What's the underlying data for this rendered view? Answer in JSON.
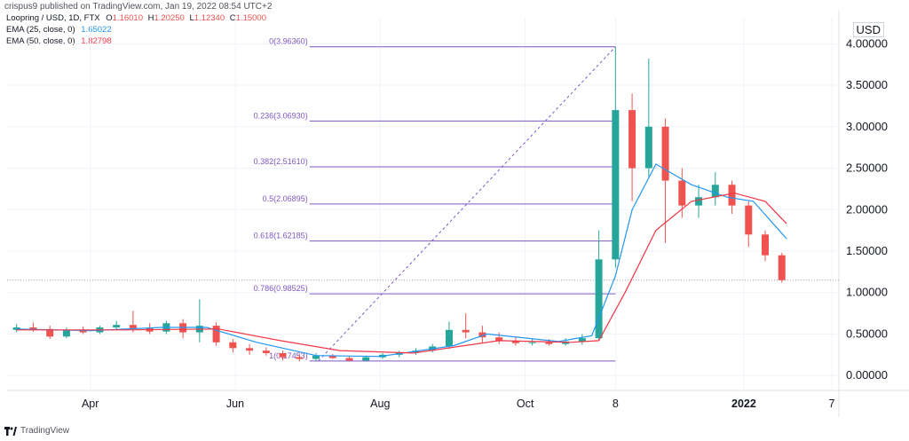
{
  "header": {
    "published_line": "crispus9 published on TradingView.com, Jan 19, 2022 08:54 UTC+2"
  },
  "legend": {
    "symbol_line": "Loopring / USD, 1D, FTX",
    "ohlc": [
      {
        "k": "O",
        "v": "1.16010"
      },
      {
        "k": "H",
        "v": "1.20250"
      },
      {
        "k": "L",
        "v": "1.12340"
      },
      {
        "k": "C",
        "v": "1.15000"
      }
    ],
    "ema25_label": "EMA (25, close, 0)",
    "ema25_value": "1.65022",
    "ema50_label": "EMA (50, close, 0)",
    "ema50_value": "1.82798"
  },
  "currency_label": "USD",
  "footer": {
    "brand": "TradingView"
  },
  "colors": {
    "up": "#26a69a",
    "down": "#ef5350",
    "ema25": "#2196f3",
    "ema50": "#f23645",
    "fib": "#7e57c2",
    "grid": "#f0f3fa",
    "axis_text": "#131722"
  },
  "chart_data": {
    "type": "candlestick",
    "title": "",
    "xlabel": "",
    "ylabel": "",
    "ylim": [
      -0.18,
      4.1
    ],
    "y_ticks": [
      "0.00000",
      "0.50000",
      "1.00000",
      "1.50000",
      "2.00000",
      "2.50000",
      "3.00000",
      "3.50000",
      "4.00000"
    ],
    "y_tick_values": [
      0,
      0.5,
      1,
      1.5,
      2,
      2.5,
      3,
      3.5,
      4
    ],
    "x_range": [
      "2021-02-25",
      "2022-02-10"
    ],
    "x_ticks": [
      {
        "label": "Apr",
        "date": "2021-04-01"
      },
      {
        "label": "Jun",
        "date": "2021-06-01"
      },
      {
        "label": "Aug",
        "date": "2021-08-01"
      },
      {
        "label": "Oct",
        "date": "2021-10-01"
      },
      {
        "label": "8",
        "date": "2021-11-08"
      },
      {
        "label": "2022",
        "date": "2022-01-01"
      },
      {
        "label": "7",
        "date": "2022-02-07"
      }
    ],
    "last_price": 1.15,
    "fibonacci": {
      "start": {
        "date": "2021-07-06",
        "price": 0.17453
      },
      "end": {
        "date": "2021-11-08",
        "price": 3.9636
      },
      "levels": [
        {
          "label": "0(3.96360)",
          "price": 3.9636
        },
        {
          "label": "0.236(3.06930)",
          "price": 3.0693
        },
        {
          "label": "0.382(2.51610)",
          "price": 2.5161
        },
        {
          "label": "0.5(2.06895)",
          "price": 2.06895
        },
        {
          "label": "0.618(1.62185)",
          "price": 1.62185
        },
        {
          "label": "0.786(0.98525)",
          "price": 0.98525
        },
        {
          "label": "1(0.17453)",
          "price": 0.17453
        }
      ]
    },
    "series": [
      {
        "name": "Loopring / USD",
        "kind": "candles",
        "points": [
          {
            "date": "2021-03-01",
            "o": 0.55,
            "h": 0.62,
            "l": 0.52,
            "c": 0.58
          },
          {
            "date": "2021-03-08",
            "o": 0.58,
            "h": 0.64,
            "l": 0.53,
            "c": 0.56
          },
          {
            "date": "2021-03-15",
            "o": 0.56,
            "h": 0.6,
            "l": 0.44,
            "c": 0.47
          },
          {
            "date": "2021-03-22",
            "o": 0.47,
            "h": 0.58,
            "l": 0.45,
            "c": 0.55
          },
          {
            "date": "2021-03-29",
            "o": 0.55,
            "h": 0.59,
            "l": 0.5,
            "c": 0.52
          },
          {
            "date": "2021-04-05",
            "o": 0.52,
            "h": 0.6,
            "l": 0.5,
            "c": 0.58
          },
          {
            "date": "2021-04-12",
            "o": 0.58,
            "h": 0.66,
            "l": 0.55,
            "c": 0.61
          },
          {
            "date": "2021-04-19",
            "o": 0.61,
            "h": 0.78,
            "l": 0.52,
            "c": 0.57
          },
          {
            "date": "2021-04-26",
            "o": 0.57,
            "h": 0.63,
            "l": 0.5,
            "c": 0.53
          },
          {
            "date": "2021-05-03",
            "o": 0.53,
            "h": 0.66,
            "l": 0.5,
            "c": 0.63
          },
          {
            "date": "2021-05-10",
            "o": 0.63,
            "h": 0.68,
            "l": 0.45,
            "c": 0.52
          },
          {
            "date": "2021-05-17",
            "o": 0.52,
            "h": 0.92,
            "l": 0.4,
            "c": 0.6
          },
          {
            "date": "2021-05-24",
            "o": 0.6,
            "h": 0.64,
            "l": 0.36,
            "c": 0.4
          },
          {
            "date": "2021-05-31",
            "o": 0.4,
            "h": 0.44,
            "l": 0.28,
            "c": 0.33
          },
          {
            "date": "2021-06-07",
            "o": 0.33,
            "h": 0.38,
            "l": 0.25,
            "c": 0.3
          },
          {
            "date": "2021-06-14",
            "o": 0.3,
            "h": 0.34,
            "l": 0.24,
            "c": 0.27
          },
          {
            "date": "2021-06-21",
            "o": 0.27,
            "h": 0.3,
            "l": 0.18,
            "c": 0.22
          },
          {
            "date": "2021-06-28",
            "o": 0.22,
            "h": 0.26,
            "l": 0.17,
            "c": 0.2
          },
          {
            "date": "2021-07-05",
            "o": 0.2,
            "h": 0.27,
            "l": 0.17,
            "c": 0.24
          },
          {
            "date": "2021-07-12",
            "o": 0.24,
            "h": 0.26,
            "l": 0.2,
            "c": 0.21
          },
          {
            "date": "2021-07-19",
            "o": 0.21,
            "h": 0.23,
            "l": 0.17,
            "c": 0.18
          },
          {
            "date": "2021-07-26",
            "o": 0.18,
            "h": 0.24,
            "l": 0.17,
            "c": 0.22
          },
          {
            "date": "2021-08-02",
            "o": 0.22,
            "h": 0.27,
            "l": 0.2,
            "c": 0.25
          },
          {
            "date": "2021-08-09",
            "o": 0.25,
            "h": 0.3,
            "l": 0.22,
            "c": 0.28
          },
          {
            "date": "2021-08-16",
            "o": 0.28,
            "h": 0.33,
            "l": 0.25,
            "c": 0.3
          },
          {
            "date": "2021-08-23",
            "o": 0.3,
            "h": 0.38,
            "l": 0.28,
            "c": 0.35
          },
          {
            "date": "2021-08-30",
            "o": 0.35,
            "h": 0.65,
            "l": 0.32,
            "c": 0.55
          },
          {
            "date": "2021-09-06",
            "o": 0.55,
            "h": 0.75,
            "l": 0.45,
            "c": 0.52
          },
          {
            "date": "2021-09-13",
            "o": 0.52,
            "h": 0.6,
            "l": 0.4,
            "c": 0.46
          },
          {
            "date": "2021-09-20",
            "o": 0.46,
            "h": 0.52,
            "l": 0.38,
            "c": 0.42
          },
          {
            "date": "2021-09-27",
            "o": 0.42,
            "h": 0.47,
            "l": 0.36,
            "c": 0.39
          },
          {
            "date": "2021-10-04",
            "o": 0.39,
            "h": 0.45,
            "l": 0.36,
            "c": 0.4
          },
          {
            "date": "2021-10-11",
            "o": 0.4,
            "h": 0.44,
            "l": 0.36,
            "c": 0.38
          },
          {
            "date": "2021-10-18",
            "o": 0.38,
            "h": 0.45,
            "l": 0.36,
            "c": 0.41
          },
          {
            "date": "2021-10-25",
            "o": 0.41,
            "h": 0.5,
            "l": 0.37,
            "c": 0.45
          },
          {
            "date": "2021-11-01",
            "o": 0.45,
            "h": 1.75,
            "l": 0.42,
            "c": 1.4
          },
          {
            "date": "2021-11-08",
            "o": 1.4,
            "h": 3.96,
            "l": 1.3,
            "c": 3.2
          },
          {
            "date": "2021-11-15",
            "o": 3.2,
            "h": 3.4,
            "l": 2.1,
            "c": 2.5
          },
          {
            "date": "2021-11-22",
            "o": 2.5,
            "h": 3.82,
            "l": 2.4,
            "c": 3.0
          },
          {
            "date": "2021-11-29",
            "o": 3.0,
            "h": 3.1,
            "l": 1.6,
            "c": 2.35
          },
          {
            "date": "2021-12-06",
            "o": 2.35,
            "h": 2.5,
            "l": 1.9,
            "c": 2.05
          },
          {
            "date": "2021-12-13",
            "o": 2.05,
            "h": 2.3,
            "l": 1.9,
            "c": 2.15
          },
          {
            "date": "2021-12-20",
            "o": 2.15,
            "h": 2.45,
            "l": 2.05,
            "c": 2.3
          },
          {
            "date": "2021-12-27",
            "o": 2.3,
            "h": 2.35,
            "l": 1.95,
            "c": 2.05
          },
          {
            "date": "2022-01-03",
            "o": 2.05,
            "h": 2.1,
            "l": 1.55,
            "c": 1.7
          },
          {
            "date": "2022-01-10",
            "o": 1.7,
            "h": 1.75,
            "l": 1.38,
            "c": 1.45
          },
          {
            "date": "2022-01-17",
            "o": 1.45,
            "h": 1.48,
            "l": 1.12,
            "c": 1.15
          }
        ]
      },
      {
        "name": "EMA (25, close, 0)",
        "kind": "line",
        "points": [
          {
            "date": "2021-03-01",
            "v": 0.56
          },
          {
            "date": "2021-04-01",
            "v": 0.54
          },
          {
            "date": "2021-05-01",
            "v": 0.58
          },
          {
            "date": "2021-05-20",
            "v": 0.58
          },
          {
            "date": "2021-06-10",
            "v": 0.4
          },
          {
            "date": "2021-07-05",
            "v": 0.24
          },
          {
            "date": "2021-08-01",
            "v": 0.23
          },
          {
            "date": "2021-09-01",
            "v": 0.36
          },
          {
            "date": "2021-09-15",
            "v": 0.5
          },
          {
            "date": "2021-10-15",
            "v": 0.41
          },
          {
            "date": "2021-10-29",
            "v": 0.48
          },
          {
            "date": "2021-11-08",
            "v": 1.2
          },
          {
            "date": "2021-11-15",
            "v": 2.0
          },
          {
            "date": "2021-11-25",
            "v": 2.55
          },
          {
            "date": "2021-12-10",
            "v": 2.3
          },
          {
            "date": "2021-12-25",
            "v": 2.15
          },
          {
            "date": "2022-01-05",
            "v": 2.1
          },
          {
            "date": "2022-01-19",
            "v": 1.65
          }
        ]
      },
      {
        "name": "EMA (50, close, 0)",
        "kind": "line",
        "points": [
          {
            "date": "2021-03-01",
            "v": 0.55
          },
          {
            "date": "2021-04-15",
            "v": 0.55
          },
          {
            "date": "2021-05-25",
            "v": 0.56
          },
          {
            "date": "2021-06-20",
            "v": 0.42
          },
          {
            "date": "2021-07-15",
            "v": 0.3
          },
          {
            "date": "2021-08-15",
            "v": 0.27
          },
          {
            "date": "2021-09-20",
            "v": 0.42
          },
          {
            "date": "2021-10-20",
            "v": 0.4
          },
          {
            "date": "2021-11-01",
            "v": 0.42
          },
          {
            "date": "2021-11-12",
            "v": 1.0
          },
          {
            "date": "2021-11-25",
            "v": 1.75
          },
          {
            "date": "2021-12-10",
            "v": 2.1
          },
          {
            "date": "2021-12-28",
            "v": 2.2
          },
          {
            "date": "2022-01-10",
            "v": 2.1
          },
          {
            "date": "2022-01-19",
            "v": 1.83
          }
        ]
      }
    ]
  }
}
